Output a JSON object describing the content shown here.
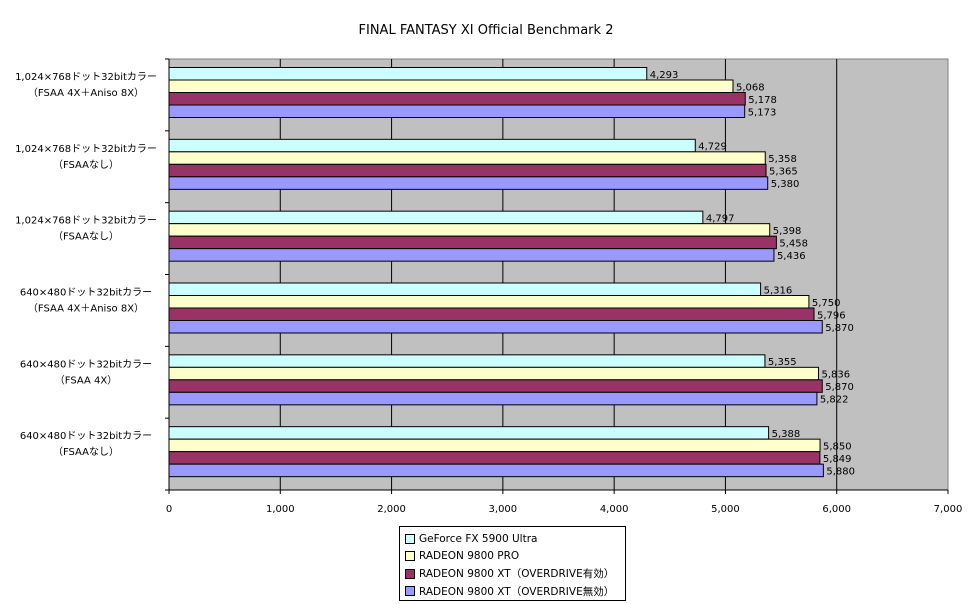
{
  "chart_data": {
    "type": "bar",
    "orientation": "horizontal",
    "title": "FINAL FANTASY XI Official Benchmark 2",
    "xlim": [
      0,
      7000
    ],
    "ticks": [
      "0",
      "1,000",
      "2,000",
      "3,000",
      "4,000",
      "5,000",
      "6,000",
      "7,000"
    ],
    "tick_values": [
      0,
      1000,
      2000,
      3000,
      4000,
      5000,
      6000,
      7000
    ],
    "grid": true,
    "legend_position": "bottom",
    "categories": [
      [
        "1,024×768ドット32bitカラー",
        "（FSAA 4X＋Aniso 8X）"
      ],
      [
        "1,024×768ドット32bitカラー",
        "（FSAAなし）"
      ],
      [
        "1,024×768ドット32bitカラー",
        "（FSAAなし）"
      ],
      [
        "640×480ドット32bitカラー",
        "（FSAA 4X＋Aniso 8X）"
      ],
      [
        "640×480ドット32bitカラー",
        "（FSAA 4X）"
      ],
      [
        "640×480ドット32bitカラー",
        "（FSAAなし）"
      ]
    ],
    "series": [
      {
        "name": "GeForce FX 5900 Ultra",
        "color": "#ccffff",
        "values": [
          4293,
          4729,
          4797,
          5316,
          5355,
          5388
        ],
        "labels": [
          "4,293",
          "4,729",
          "4,797",
          "5,316",
          "5,355",
          "5,388"
        ]
      },
      {
        "name": "RADEON 9800 PRO",
        "color": "#ffffcc",
        "values": [
          5068,
          5358,
          5398,
          5750,
          5836,
          5850
        ],
        "labels": [
          "5,068",
          "5,358",
          "5,398",
          "5,750",
          "5,836",
          "5,850"
        ]
      },
      {
        "name": "RADEON 9800 XT（OVERDRIVE有効）",
        "color": "#993366",
        "values": [
          5178,
          5365,
          5458,
          5796,
          5870,
          5849
        ],
        "labels": [
          "5,178",
          "5,365",
          "5,458",
          "5,796",
          "5,870",
          "5,849"
        ]
      },
      {
        "name": "RADEON 9800 XT（OVERDRIVE無効）",
        "color": "#9999ff",
        "values": [
          5173,
          5380,
          5436,
          5870,
          5822,
          5880
        ],
        "labels": [
          "5,173",
          "5,380",
          "5,436",
          "5,870",
          "5,822",
          "5,880"
        ]
      }
    ],
    "plot_background": "#c0c0c0"
  }
}
